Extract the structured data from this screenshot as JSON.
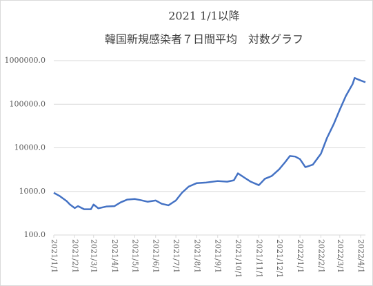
{
  "chart_data": {
    "type": "line",
    "title": "2021 1/1以降",
    "subtitle": "韓国新規感染者７日間平均　対数グラフ",
    "x": [
      "2021/1/1",
      "2021/1/10",
      "2021/1/20",
      "2021/1/25",
      "2021/2/1",
      "2021/2/6",
      "2021/2/15",
      "2021/2/25",
      "2021/3/1",
      "2021/3/8",
      "2021/3/20",
      "2021/4/1",
      "2021/4/10",
      "2021/4/20",
      "2021/5/1",
      "2021/5/10",
      "2021/5/20",
      "2021/6/1",
      "2021/6/10",
      "2021/6/20",
      "2021/7/1",
      "2021/7/10",
      "2021/7/20",
      "2021/8/1",
      "2021/8/15",
      "2021/9/1",
      "2021/9/15",
      "2021/9/25",
      "2021/10/1",
      "2021/10/10",
      "2021/10/20",
      "2021/11/1",
      "2021/11/10",
      "2021/11/20",
      "2021/12/1",
      "2021/12/10",
      "2021/12/17",
      "2021/12/25",
      "2022/1/1",
      "2022/1/9",
      "2022/1/20",
      "2022/2/1",
      "2022/2/10",
      "2022/2/20",
      "2022/3/1",
      "2022/3/10",
      "2022/3/20",
      "2022/3/23",
      "2022/4/1",
      "2022/4/8"
    ],
    "series": [
      {
        "name": "7日間平均",
        "color": "#4472c4",
        "values": [
          930,
          780,
          600,
          500,
          415,
          460,
          390,
          390,
          500,
          410,
          450,
          460,
          560,
          650,
          670,
          630,
          580,
          620,
          520,
          480,
          620,
          930,
          1290,
          1550,
          1600,
          1730,
          1670,
          1800,
          2600,
          2100,
          1670,
          1390,
          1950,
          2250,
          3200,
          4700,
          6500,
          6300,
          5500,
          3600,
          4100,
          7300,
          16800,
          35000,
          75000,
          155000,
          290000,
          400000,
          350000,
          320000
        ]
      }
    ],
    "xlim": [
      "2021/1/1",
      "2022/4/8"
    ],
    "xticks": [
      "2021/1/1",
      "2021/2/1",
      "2021/3/1",
      "2021/4/1",
      "2021/5/1",
      "2021/6/1",
      "2021/7/1",
      "2021/8/1",
      "2021/9/1",
      "2021/10/1",
      "2021/11/1",
      "2021/12/1",
      "2022/1/1",
      "2022/2/1",
      "2022/3/1",
      "2022/4/1"
    ],
    "ylim": [
      100,
      1000000
    ],
    "yticks": [
      {
        "value": 100,
        "label": "100.0"
      },
      {
        "value": 1000,
        "label": "1000.0"
      },
      {
        "value": 10000,
        "label": "10000.0"
      },
      {
        "value": 100000,
        "label": "100000.0"
      },
      {
        "value": 1000000,
        "label": "1000000.0"
      }
    ],
    "log_scale": true,
    "grid": true
  }
}
